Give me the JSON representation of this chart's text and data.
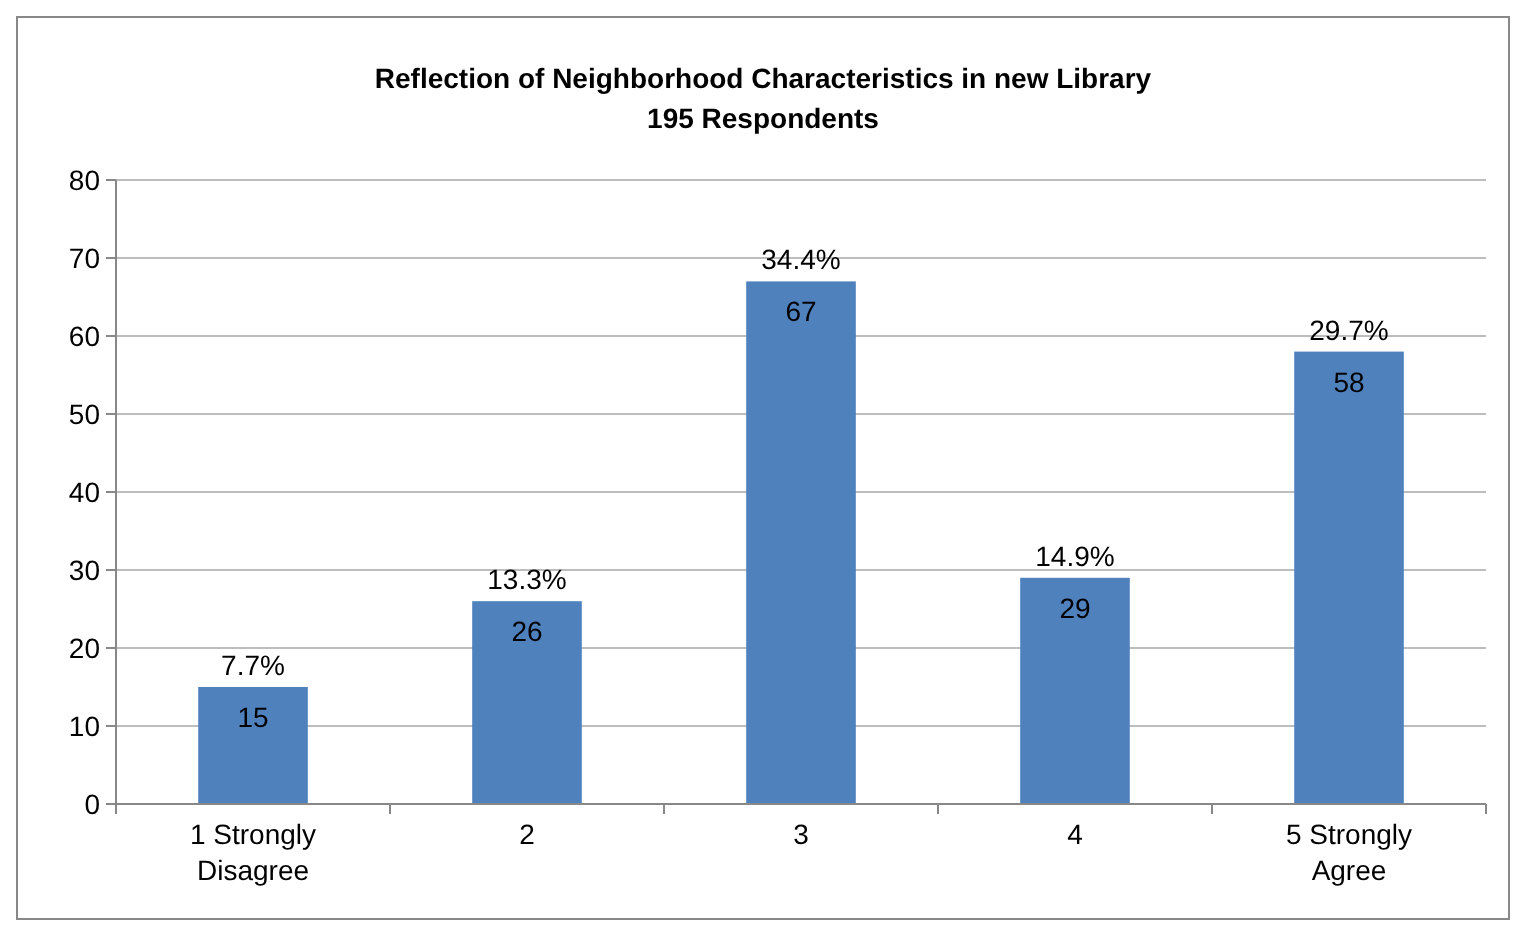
{
  "chart_data": {
    "type": "bar",
    "title": "Reflection of Neighborhood Characteristics in new Library\n195 Respondents",
    "categories": [
      "1 Strongly Disagree",
      "2",
      "3",
      "4",
      "5 Strongly Agree"
    ],
    "values": [
      15,
      26,
      67,
      29,
      58
    ],
    "color": "#4f81bd",
    "data_labels": true,
    "ylim": [
      0,
      80
    ],
    "yticks": [
      0,
      10,
      20,
      30,
      40,
      50,
      60,
      70,
      80
    ],
    "grid": "y",
    "annotations": [
      {
        "text": "7.7%",
        "x": "1 Strongly Disagree",
        "y": 15
      },
      {
        "text": "13.3%",
        "x": "2",
        "y": 26
      },
      {
        "text": "34.4%",
        "x": "3",
        "y": 67
      },
      {
        "text": "14.9%",
        "x": "4",
        "y": 29
      },
      {
        "text": "29.7%",
        "x": "5 Strongly Agree",
        "y": 58
      }
    ]
  }
}
